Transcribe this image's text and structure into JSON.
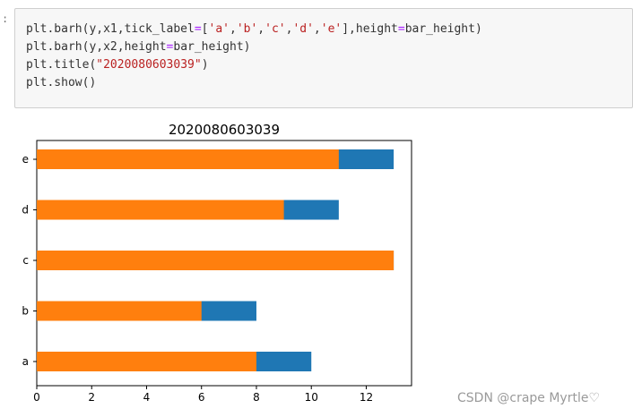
{
  "prompt": ":",
  "code": {
    "lines": [
      [
        {
          "t": "plt.barh(y,x1,tick_label"
        },
        {
          "t": "=",
          "c": "tok-op"
        },
        {
          "t": "["
        },
        {
          "t": "'a'",
          "c": "tok-str"
        },
        {
          "t": ","
        },
        {
          "t": "'b'",
          "c": "tok-str"
        },
        {
          "t": ","
        },
        {
          "t": "'c'",
          "c": "tok-str"
        },
        {
          "t": ","
        },
        {
          "t": "'d'",
          "c": "tok-str"
        },
        {
          "t": ","
        },
        {
          "t": "'e'",
          "c": "tok-str"
        },
        {
          "t": "],height"
        },
        {
          "t": "=",
          "c": "tok-op"
        },
        {
          "t": "bar_height)"
        }
      ],
      [
        {
          "t": "plt.barh(y,x2,height"
        },
        {
          "t": "=",
          "c": "tok-op"
        },
        {
          "t": "bar_height)"
        }
      ],
      [
        {
          "t": "plt.title("
        },
        {
          "t": "\"2020080603039\"",
          "c": "tok-str"
        },
        {
          "t": ")"
        }
      ],
      [
        {
          "t": "plt.show()"
        }
      ]
    ]
  },
  "chart_data": {
    "type": "bar",
    "orientation": "horizontal",
    "title": "2020080603039",
    "categories": [
      "a",
      "b",
      "c",
      "d",
      "e"
    ],
    "series": [
      {
        "values": [
          10,
          8,
          13,
          11,
          13
        ],
        "color": "#1f77b4"
      },
      {
        "values": [
          8,
          6,
          13,
          9,
          11
        ],
        "color": "#ff7f0e"
      }
    ],
    "xlim": [
      0,
      13.65
    ],
    "xticks": [
      0,
      2,
      4,
      6,
      8,
      10,
      12
    ],
    "grid": false
  },
  "watermark": "CSDN @crape Myrtle♡"
}
